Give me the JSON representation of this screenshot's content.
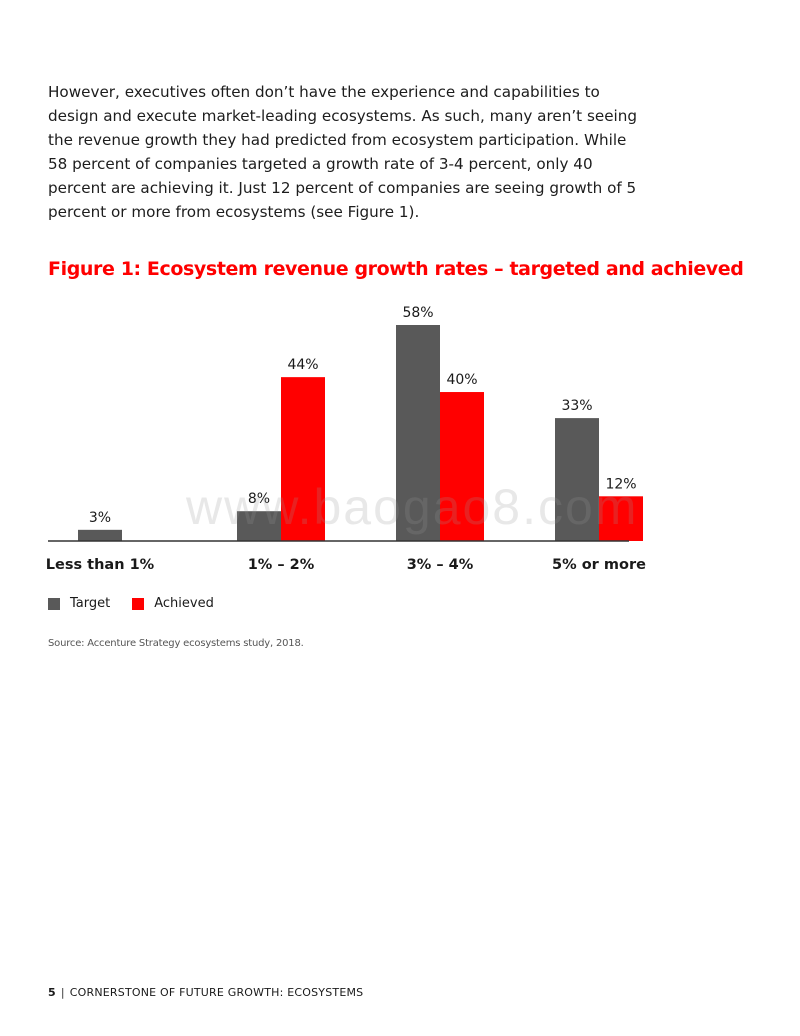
{
  "intro_text": "However, executives often don’t have the experience and capabilities to design and execute market-leading ecosystems. As such, many aren’t seeing the revenue growth they had predicted from ecosystem participation. While 58 percent of companies targeted a growth rate of 3-4 percent, only 40 percent are achieving it. Just 12 percent of companies are seeing growth of 5 percent or more from ecosystems (see Figure 1).",
  "figure_title": "Figure 1: Ecosystem revenue growth rates – targeted and achieved",
  "chart_data": {
    "type": "bar",
    "title": "Figure 1: Ecosystem revenue growth rates – targeted and achieved",
    "categories": [
      "Less than 1%",
      "1% – 2%",
      "3% – 4%",
      "5% or more"
    ],
    "series": [
      {
        "name": "Target",
        "values": [
          3,
          8,
          58,
          33
        ],
        "labels": [
          "3%",
          "8%",
          "58%",
          "33%"
        ],
        "color": "#595959"
      },
      {
        "name": "Achieved",
        "values": [
          null,
          44,
          40,
          12
        ],
        "labels": [
          "",
          "44%",
          "40%",
          "12%"
        ],
        "color": "#ff0000"
      }
    ],
    "xlabel": "",
    "ylabel": "",
    "ylim": [
      0,
      58
    ],
    "grid": false,
    "legend": "bottom-left"
  },
  "legend": [
    {
      "label": "Target",
      "color": "#595959"
    },
    {
      "label": "Achieved",
      "color": "#ff0000"
    }
  ],
  "source": "Source: Accenture Strategy ecosystems study, 2018.",
  "watermark": "www.baogao8.com",
  "footer": {
    "page_number": "5",
    "separator": "|",
    "title": "CORNERSTONE OF FUTURE GROWTH: ECOSYSTEMS"
  }
}
